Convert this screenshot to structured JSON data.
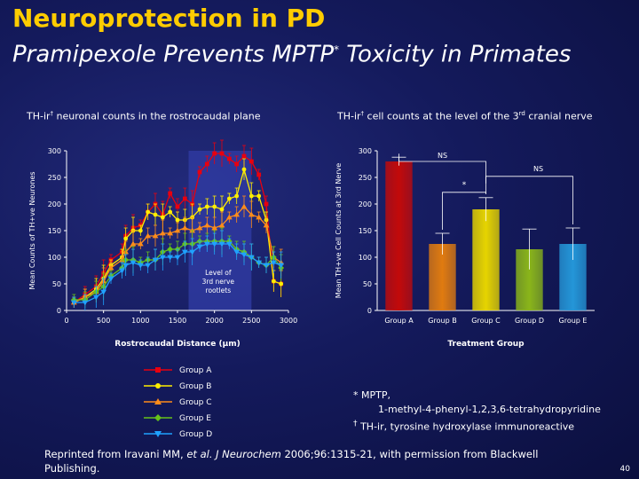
{
  "title": {
    "line1": "Neuroprotection in PD",
    "line2_pre": "Pramipexole Prevents MPTP",
    "line2_sup": "*",
    "line2_post": " Toxicity in Primates"
  },
  "left_panel": {
    "subtitle_pre": "TH-ir",
    "subtitle_sup": "†",
    "subtitle_post": " neuronal counts in the rostrocaudal plane",
    "annotation_lines": [
      "Level of",
      "3rd nerve",
      "rootlets"
    ]
  },
  "right_panel": {
    "subtitle_pre": "TH-ir",
    "subtitle_sup1": "†",
    "subtitle_mid": " cell counts at the level of the 3",
    "subtitle_sup2": "rd",
    "subtitle_post": " cranial nerve",
    "sig_labels": [
      "NS",
      "*",
      "NS"
    ]
  },
  "footnote": {
    "line1": "* MPTP,",
    "line2": "1-methyl-4-phenyl-1,2,3,6-tetrahydropyridine",
    "line3_sup": "†",
    "line3": " TH-ir, tyrosine hydroxylase immunoreactive"
  },
  "citation": {
    "pre": "Reprinted from Iravani MM, ",
    "italic": "et al. J Neurochem",
    "post": " 2006;96:1315-21, with permission from Blackwell Publishing."
  },
  "slide_number": "40",
  "colors": {
    "groupA": "#e8000f",
    "groupB": "#ffee00",
    "groupC": "#ff8c1a",
    "groupD": "#1fa2ff",
    "groupE": "#66c21a",
    "title": "#ffcc00",
    "highlight": "#2f3aa0"
  },
  "chart_data": [
    {
      "type": "line",
      "title": "",
      "xlabel": "Rostrocaudal Distance (µm)",
      "ylabel": "Mean Counts of TH+ve Neurones",
      "xlim": [
        0,
        3000
      ],
      "ylim": [
        0,
        300
      ],
      "xticks": [
        0,
        500,
        1000,
        1500,
        2000,
        2500,
        3000
      ],
      "yticks": [
        0,
        50,
        100,
        150,
        200,
        250,
        300
      ],
      "highlight_range": [
        1650,
        2500
      ],
      "x": [
        100,
        250,
        400,
        500,
        600,
        750,
        800,
        900,
        1000,
        1100,
        1200,
        1300,
        1400,
        1500,
        1600,
        1700,
        1800,
        1900,
        2000,
        2100,
        2200,
        2300,
        2400,
        2500,
        2600,
        2700,
        2800,
        2900
      ],
      "series": [
        {
          "name": "Group A",
          "marker": "square",
          "values": [
            15,
            30,
            45,
            70,
            95,
            110,
            140,
            155,
            160,
            185,
            200,
            180,
            220,
            195,
            210,
            200,
            260,
            275,
            295,
            295,
            285,
            275,
            290,
            280,
            255,
            200,
            55,
            50
          ]
        },
        {
          "name": "Group B",
          "marker": "circle",
          "values": [
            15,
            25,
            40,
            60,
            85,
            100,
            135,
            150,
            150,
            185,
            180,
            175,
            185,
            170,
            170,
            175,
            190,
            195,
            195,
            190,
            210,
            215,
            265,
            215,
            215,
            170,
            55,
            50
          ]
        },
        {
          "name": "Group C",
          "marker": "triangle",
          "values": [
            15,
            25,
            35,
            55,
            80,
            95,
            110,
            125,
            125,
            140,
            140,
            145,
            145,
            150,
            155,
            150,
            155,
            160,
            155,
            160,
            175,
            180,
            195,
            180,
            175,
            160,
            100,
            90
          ]
        },
        {
          "name": "Group E",
          "marker": "diamond",
          "values": [
            20,
            20,
            35,
            45,
            65,
            80,
            95,
            95,
            90,
            95,
            95,
            110,
            115,
            115,
            125,
            125,
            130,
            130,
            130,
            130,
            130,
            115,
            110,
            100,
            90,
            85,
            100,
            80
          ]
        },
        {
          "name": "Group D",
          "marker": "triangle-down",
          "values": [
            15,
            15,
            25,
            35,
            60,
            75,
            85,
            90,
            85,
            85,
            95,
            100,
            100,
            100,
            110,
            110,
            120,
            125,
            125,
            125,
            125,
            110,
            105,
            100,
            90,
            85,
            90,
            85
          ]
        }
      ],
      "legend": [
        "Group A",
        "Group B",
        "Group C",
        "Group E",
        "Group D"
      ]
    },
    {
      "type": "bar",
      "title": "",
      "xlabel": "Treatment Group",
      "ylabel": "Mean TH+ve Cell Counts at 3rd Nerve",
      "ylim": [
        0,
        300
      ],
      "yticks": [
        0,
        50,
        100,
        150,
        200,
        250,
        300
      ],
      "categories": [
        "Group A",
        "Group B",
        "Group C",
        "Group D",
        "Group E"
      ],
      "values": [
        280,
        125,
        190,
        115,
        125
      ],
      "errors": [
        8,
        20,
        22,
        38,
        30
      ]
    }
  ]
}
